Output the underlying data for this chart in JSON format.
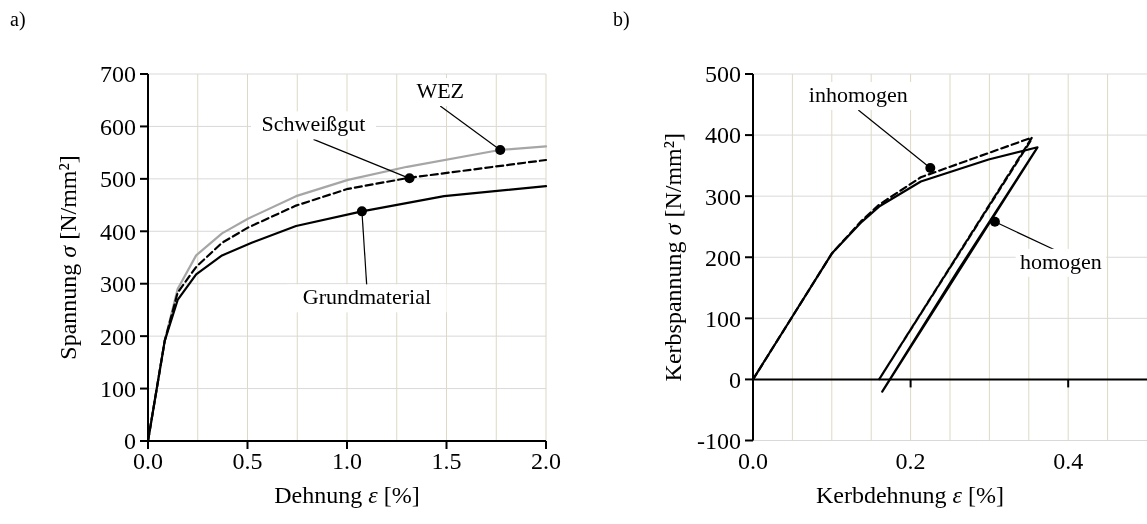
{
  "chart_data": [
    {
      "type": "line",
      "title": "a)",
      "xlabel": "Dehnung ε [%]",
      "ylabel": "Spannung σ [N/mm²]",
      "xlim": [
        0,
        2
      ],
      "ylim": [
        0,
        700
      ],
      "xticks": [
        {
          "value": 0,
          "label": "0.0"
        },
        {
          "value": 0.25,
          "label": null
        },
        {
          "value": 0.5,
          "label": "0.5"
        },
        {
          "value": 0.75,
          "label": null
        },
        {
          "value": 1,
          "label": "1.0"
        },
        {
          "value": 1.25,
          "label": null
        },
        {
          "value": 1.5,
          "label": "1.5"
        },
        {
          "value": 1.75,
          "label": null
        },
        {
          "value": 2,
          "label": "2.0"
        }
      ],
      "yticks": [
        0,
        100,
        200,
        300,
        400,
        500,
        600,
        700
      ],
      "grid": true,
      "series": [
        {
          "color": "#a6a6a6",
          "line_style": "solid",
          "x": [
            0,
            0.084,
            0.149,
            0.242,
            0.372,
            0.502,
            0.744,
            1.005,
            1.302,
            1.767,
            2.0
          ],
          "values": [
            0,
            191,
            290,
            354,
            396,
            424,
            467,
            498,
            523,
            555,
            562
          ]
        },
        {
          "color": "#000000",
          "line_style": "dashed",
          "x": [
            0,
            0.084,
            0.149,
            0.242,
            0.372,
            0.502,
            0.744,
            1.005,
            1.312,
            2.0
          ],
          "values": [
            0,
            191,
            283,
            332,
            378,
            407,
            449,
            481,
            502,
            536
          ]
        },
        {
          "color": "#000000",
          "line_style": "solid",
          "x": [
            0,
            0.084,
            0.149,
            0.242,
            0.372,
            0.521,
            0.744,
            1.075,
            1.488,
            2.0
          ],
          "values": [
            0,
            191,
            269,
            318,
            354,
            378,
            410,
            438,
            467,
            486
          ]
        }
      ],
      "annotations": [
        {
          "text": "WEZ",
          "x": 1.77,
          "y": 555
        },
        {
          "text": "Schweißgut",
          "x": 1.314,
          "y": 501
        },
        {
          "text": "Grundmaterial",
          "x": 1.075,
          "y": 438
        }
      ]
    },
    {
      "type": "line",
      "title": "b)",
      "xlabel": "Kerbdehnung ε [%]",
      "ylabel": "Kerbspannung σ [N/mm²]",
      "xlim": [
        0,
        0.5
      ],
      "ylim": [
        -100,
        500
      ],
      "xticks": [
        {
          "value": 0,
          "label": "0.0"
        },
        {
          "value": 0.05,
          "label": null
        },
        {
          "value": 0.1,
          "label": null
        },
        {
          "value": 0.15,
          "label": null
        },
        {
          "value": 0.2,
          "label": "0.2"
        },
        {
          "value": 0.25,
          "label": null
        },
        {
          "value": 0.3,
          "label": null
        },
        {
          "value": 0.35,
          "label": null
        },
        {
          "value": 0.4,
          "label": "0.4"
        },
        {
          "value": 0.45,
          "label": null
        }
      ],
      "yticks": [
        -100,
        0,
        100,
        200,
        300,
        400,
        500
      ],
      "grid": true,
      "series": [
        {
          "color": "#000000",
          "line_style": "dashed",
          "x": [
            0,
            0.05,
            0.1,
            0.138,
            0.16,
            0.213,
            0.354,
            0.16,
            0.352
          ],
          "values": [
            0,
            103,
            206,
            260,
            286,
            331,
            396,
            0,
            390
          ]
        },
        {
          "color": "#000000",
          "line_style": "solid",
          "x": [
            0,
            0.05,
            0.1,
            0.138,
            0.16,
            0.213,
            0.299,
            0.361,
            0.164,
            0.26,
            0.361
          ],
          "values": [
            0,
            103,
            206,
            258,
            283,
            324,
            360,
            380,
            -20,
            178,
            380
          ]
        }
      ],
      "annotations": [
        {
          "text": "inhomogen",
          "x": 0.225,
          "y": 346
        },
        {
          "text": "homogen",
          "x": 0.307,
          "y": 258
        }
      ]
    }
  ]
}
